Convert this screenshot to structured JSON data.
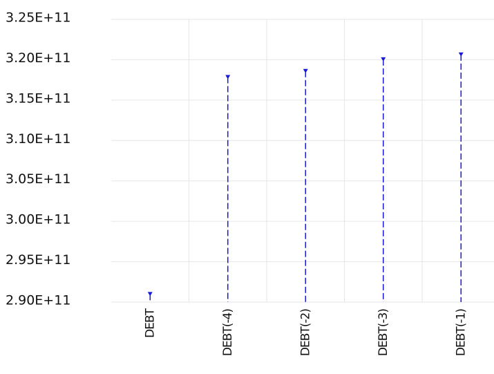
{
  "chart_data": {
    "type": "stem",
    "categories": [
      "DEBT",
      "DEBT(-4)",
      "DEBT(-2)",
      "DEBT(-3)",
      "DEBT(-1)"
    ],
    "values": [
      291000000000,
      317850000000,
      318600000000,
      320050000000,
      320650000000
    ],
    "color": "#1818d8",
    "ylim": [
      290000000000,
      325000000000
    ],
    "yticks": [
      {
        "value": 290000000000,
        "label": "2.90E+11"
      },
      {
        "value": 295000000000,
        "label": "2.95E+11"
      },
      {
        "value": 300000000000,
        "label": "3.00E+11"
      },
      {
        "value": 305000000000,
        "label": "3.05E+11"
      },
      {
        "value": 310000000000,
        "label": "3.10E+11"
      },
      {
        "value": 315000000000,
        "label": "3.15E+11"
      },
      {
        "value": 320000000000,
        "label": "3.20E+11"
      },
      {
        "value": 325000000000,
        "label": "3.25E+11"
      }
    ],
    "grid": true
  }
}
